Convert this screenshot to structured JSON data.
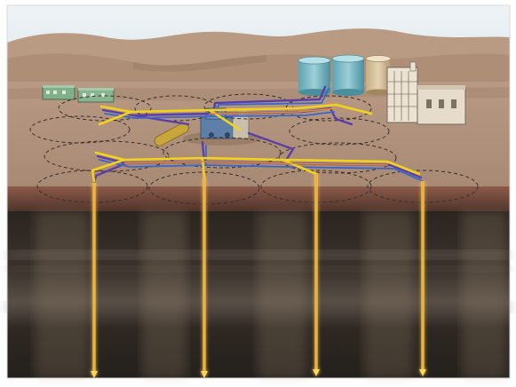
{
  "image": {
    "caption": "",
    "colors": {
      "sky": "#e9f0f4",
      "hills_far": "#b79a83",
      "hills_near": "#a9876d",
      "ground": "#b0917b",
      "ground_dark": "#9c7d68",
      "soil_band": "#8a5a48",
      "subsurface": "#2e2621",
      "pipe_yellow": "#f2d21a",
      "pipe_purple": "#5b3fa8",
      "pipe_blue": "#3a66c8",
      "well_line": "#f0a02a",
      "well_glow": "#ffd75a",
      "tank": "#79b9c3",
      "plant": "#e6dccb",
      "pad_outline": "#3a2f2a"
    },
    "elements": {
      "storage_tanks": 3,
      "well_pads": 8,
      "vertical_wells": 4,
      "field_buildings": 2
    }
  }
}
